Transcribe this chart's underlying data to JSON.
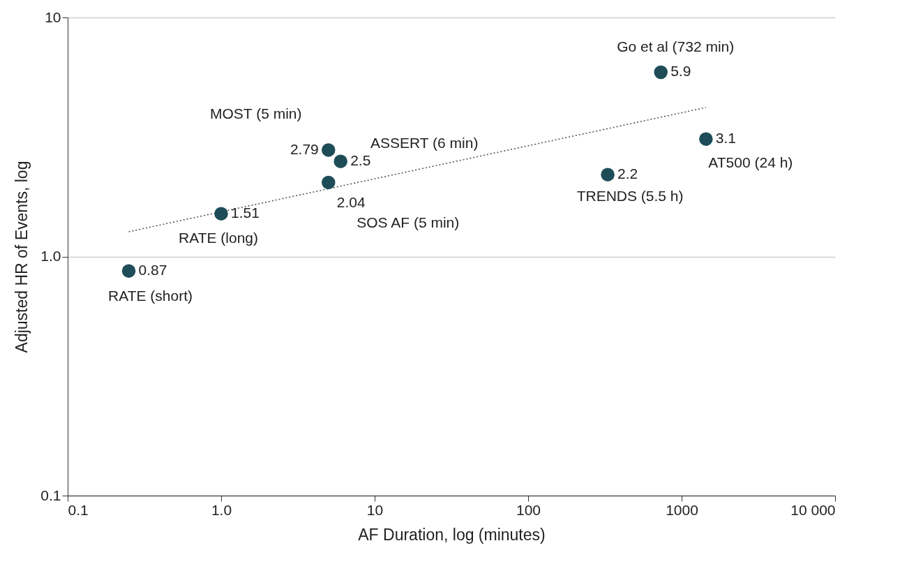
{
  "chart_data": {
    "type": "scatter",
    "xlabel": "AF Duration, log (minutes)",
    "ylabel": "Adjusted HR of Events, log",
    "log": "xy",
    "grid": "y",
    "xlim": [
      0.1,
      10000
    ],
    "ylim": [
      0.1,
      10
    ],
    "xticks": [
      0.1,
      {
        "value": 1,
        "label": "1.0"
      },
      10,
      100,
      1000,
      {
        "value": 10000,
        "label": "10 000"
      }
    ],
    "yticks": [
      0.1,
      {
        "value": 1,
        "label": "1.0"
      },
      10
    ],
    "series": [
      {
        "color": "#1e4d58",
        "x": [
          0.25,
          1,
          5,
          6,
          5,
          330,
          732,
          1440
        ],
        "values": [
          0.87,
          1.51,
          2.79,
          2.5,
          2.04,
          2.2,
          5.9,
          3.1
        ],
        "value_labels": [
          "0.87",
          "1.51",
          "2.79",
          "2.5",
          "2.04",
          "2.2",
          "5.9",
          "3.1"
        ]
      },
      {
        "type": "line",
        "color": "#555555",
        "line_style": "dotted",
        "x": [
          0.25,
          1440
        ],
        "values": [
          1.27,
          4.2
        ]
      }
    ],
    "annotations": [
      {
        "text": "RATE (short)",
        "x": 0.25,
        "y": 0.87
      },
      {
        "text": "RATE (long)",
        "x": 1,
        "y": 1.51
      },
      {
        "text": "MOST (5 min)",
        "x": 5,
        "y": 2.79
      },
      {
        "text": "ASSERT (6 min)",
        "x": 6,
        "y": 2.5
      },
      {
        "text": "SOS AF (5 min)",
        "x": 5,
        "y": 2.04
      },
      {
        "text": "TRENDS (5.5 h)",
        "x": 330,
        "y": 2.2
      },
      {
        "text": "Go et al (732 min)",
        "x": 732,
        "y": 5.9
      },
      {
        "text": "AT500 (24 h)",
        "x": 1440,
        "y": 3.1
      }
    ]
  }
}
